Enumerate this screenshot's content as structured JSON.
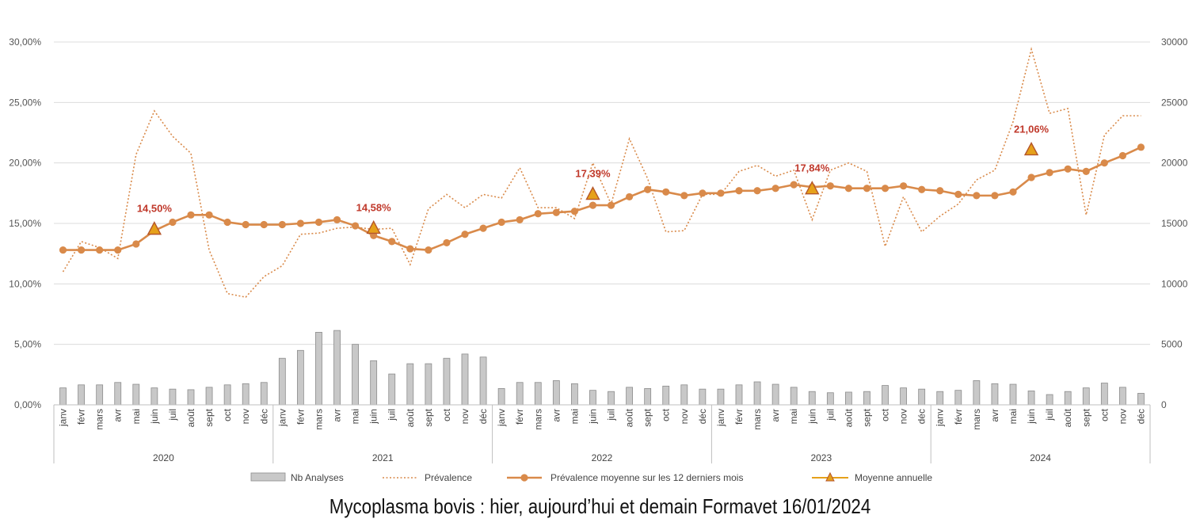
{
  "chart_data": {
    "type": "combo",
    "colors": {
      "bar": "#c8c8c8",
      "bar_stroke": "#8c8c8c",
      "line": "#d98a4a",
      "triangle": "#e6a11a",
      "triangle_stroke": "#b5562a",
      "annotation": "#c0392b",
      "grid": "#dcdcdc"
    },
    "grid": true,
    "legend_position": "bottom",
    "years": [
      "2020",
      "2021",
      "2022",
      "2023",
      "2024"
    ],
    "months": [
      "janv",
      "févr",
      "mars",
      "avr",
      "mai",
      "juin",
      "juil",
      "août",
      "sept",
      "oct",
      "nov",
      "déc"
    ],
    "y_left": {
      "ticks": [
        "0,00%",
        "5,00%",
        "10,00%",
        "15,00%",
        "20,00%",
        "25,00%",
        "30,00%"
      ],
      "ylim": [
        0,
        30
      ]
    },
    "y_right": {
      "ticks": [
        "0",
        "5000",
        "10000",
        "15000",
        "20000",
        "25000",
        "30000"
      ],
      "ylim": [
        0,
        30000
      ]
    },
    "legend": [
      "Nb Analyses",
      "Prévalence",
      "Prévalence moyenne sur les 12 derniers mois",
      "Moyenne annuelle"
    ],
    "series": [
      {
        "name": "Nb Analyses",
        "axis": "right",
        "kind": "bar",
        "values": [
          1400,
          1650,
          1650,
          1850,
          1700,
          1400,
          1300,
          1250,
          1450,
          1650,
          1750,
          1850,
          3850,
          4500,
          6000,
          6150,
          5000,
          3650,
          2550,
          3400,
          3400,
          3850,
          4200,
          3950,
          1350,
          1850,
          1850,
          2000,
          1750,
          1200,
          1100,
          1450,
          1350,
          1550,
          1650,
          1300,
          1300,
          1650,
          1900,
          1700,
          1450,
          1100,
          1000,
          1050,
          1100,
          1600,
          1400,
          1300,
          1100,
          1200,
          2000,
          1750,
          1700,
          1150,
          850,
          1100,
          1400,
          1800,
          1450,
          950
        ]
      },
      {
        "name": "Prévalence",
        "axis": "left",
        "kind": "dotted-line",
        "values": [
          11.0,
          13.5,
          13.0,
          12.1,
          20.7,
          24.3,
          22.2,
          20.8,
          12.8,
          9.2,
          8.9,
          10.6,
          11.5,
          14.1,
          14.2,
          14.6,
          14.7,
          14.5,
          14.6,
          11.6,
          16.2,
          17.4,
          16.3,
          17.4,
          17.1,
          19.6,
          16.3,
          16.3,
          15.4,
          20.0,
          16.6,
          22.0,
          18.7,
          14.3,
          14.4,
          17.4,
          17.4,
          19.3,
          19.8,
          18.9,
          19.4,
          15.3,
          19.4,
          20.0,
          19.3,
          13.1,
          17.2,
          14.3,
          15.6,
          16.6,
          18.6,
          19.4,
          23.4,
          29.4,
          24.1,
          24.5,
          15.7,
          22.3,
          23.9,
          23.9
        ]
      },
      {
        "name": "Prévalence moyenne sur les 12 derniers mois",
        "axis": "left",
        "kind": "line",
        "values": [
          12.8,
          12.8,
          12.8,
          12.8,
          13.3,
          14.4,
          15.1,
          15.7,
          15.7,
          15.1,
          14.9,
          14.9,
          14.9,
          15.0,
          15.1,
          15.3,
          14.8,
          14.0,
          13.5,
          12.9,
          12.8,
          13.4,
          14.1,
          14.6,
          15.1,
          15.3,
          15.8,
          15.9,
          16.0,
          16.5,
          16.5,
          17.2,
          17.8,
          17.6,
          17.3,
          17.5,
          17.5,
          17.7,
          17.7,
          17.9,
          18.2,
          18.0,
          18.1,
          17.9,
          17.9,
          17.9,
          18.1,
          17.8,
          17.7,
          17.4,
          17.3,
          17.3,
          17.6,
          18.8,
          19.2,
          19.5,
          19.3,
          20.0,
          20.6,
          21.3
        ]
      },
      {
        "name": "Moyenne annuelle",
        "axis": "left",
        "kind": "marker",
        "points": [
          {
            "index": 5,
            "value": 14.5,
            "label": "14,50%"
          },
          {
            "index": 17,
            "value": 14.58,
            "label": "14,58%"
          },
          {
            "index": 29,
            "value": 17.39,
            "label": "17,39%"
          },
          {
            "index": 41,
            "value": 17.84,
            "label": "17,84%"
          },
          {
            "index": 53,
            "value": 21.06,
            "label": "21,06%"
          }
        ]
      }
    ]
  },
  "caption": "Mycoplasma bovis : hier, aujourd’hui et demain Formavet 16/01/2024"
}
